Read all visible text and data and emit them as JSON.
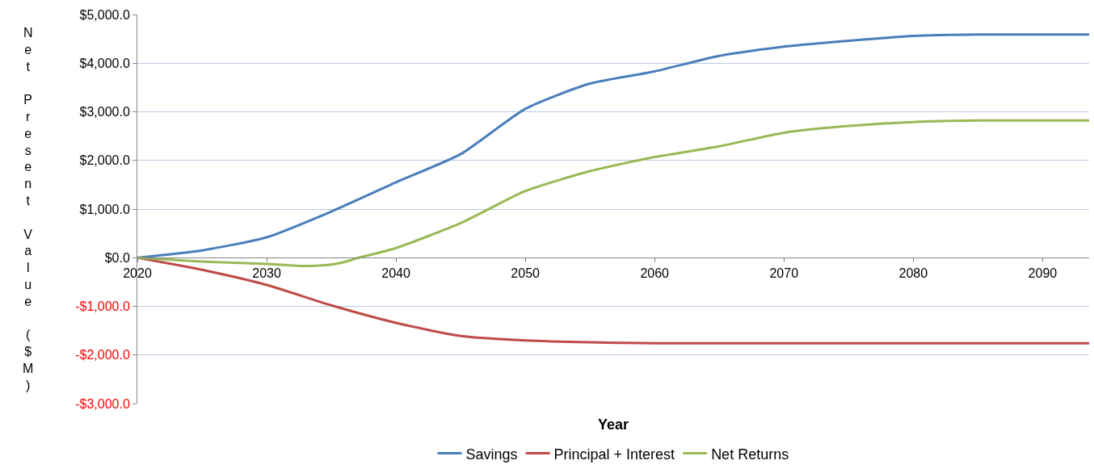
{
  "chart_data": {
    "type": "line",
    "xlabel": "Year",
    "ylabel": "Net Present Value ($M)",
    "xlim": [
      2020,
      2093.6
    ],
    "xticks": [
      2020,
      2030,
      2040,
      2050,
      2060,
      2070,
      2080,
      2090
    ],
    "ylim": [
      -3000,
      5000
    ],
    "yticks": [
      {
        "value": -3000,
        "label": "-$3,000.0"
      },
      {
        "value": -2000,
        "label": "-$2,000.0"
      },
      {
        "value": -1000,
        "label": "-$1,000.0"
      },
      {
        "value": 0,
        "label": "$0.0"
      },
      {
        "value": 1000,
        "label": "$1,000.0"
      },
      {
        "value": 2000,
        "label": "$2,000.0"
      },
      {
        "value": 3000,
        "label": "$3,000.0"
      },
      {
        "value": 4000,
        "label": "$4,000.0"
      },
      {
        "value": 5000,
        "label": "$5,000.0"
      }
    ],
    "grid": "y",
    "legend": "bottom",
    "marker": "none",
    "line_style": "solid",
    "series": [
      {
        "name": "Savings",
        "color": "#4a7ebb",
        "x": [
          2020,
          2025,
          2030,
          2035,
          2040,
          2045,
          2050,
          2055,
          2060,
          2065,
          2070,
          2075,
          2080,
          2085,
          2093.6
        ],
        "values": [
          0,
          150,
          420,
          950,
          1550,
          2130,
          3060,
          3580,
          3830,
          4150,
          4340,
          4460,
          4560,
          4590,
          4590
        ]
      },
      {
        "name": "Principal + Interest",
        "color": "#be4b48",
        "x": [
          2020,
          2025,
          2030,
          2035,
          2040,
          2045,
          2050,
          2055,
          2060,
          2070,
          2080,
          2093.6
        ],
        "values": [
          0,
          -250,
          -560,
          -980,
          -1340,
          -1610,
          -1700,
          -1740,
          -1760,
          -1760,
          -1760,
          -1760
        ]
      },
      {
        "name": "Net Returns",
        "color": "#98b954",
        "x": [
          2020,
          2025,
          2030,
          2033,
          2035,
          2036,
          2037,
          2040,
          2045,
          2050,
          2055,
          2060,
          2065,
          2070,
          2075,
          2080,
          2085,
          2093.6
        ],
        "values": [
          0,
          -80,
          -130,
          -170,
          -140,
          -90,
          -10,
          200,
          710,
          1370,
          1780,
          2070,
          2290,
          2570,
          2710,
          2790,
          2820,
          2820
        ]
      }
    ]
  }
}
